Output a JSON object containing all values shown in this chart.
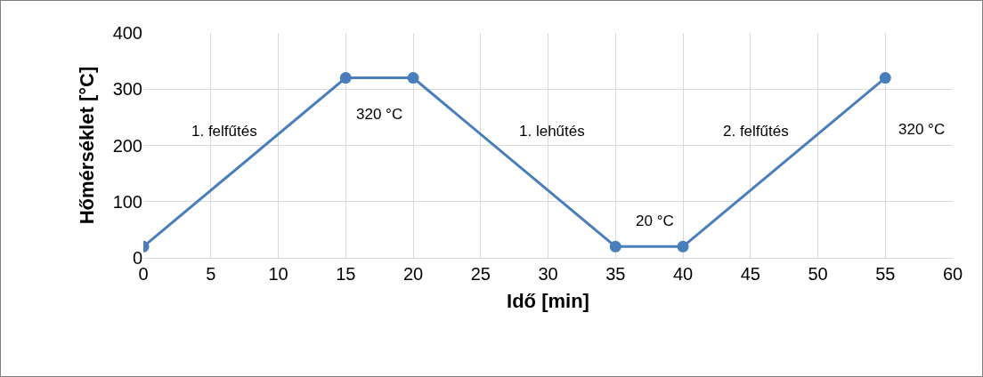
{
  "chart_data": {
    "type": "line",
    "xlabel": "Idő [min]",
    "ylabel": "Hőmérséklet [°C]",
    "x": [
      0,
      15,
      20,
      35,
      40,
      55
    ],
    "series": [
      {
        "color": "#4a7ebb",
        "values": [
          20,
          320,
          320,
          20,
          20,
          320
        ]
      }
    ],
    "xlim": [
      0,
      60
    ],
    "xticks": [
      0,
      5,
      10,
      15,
      20,
      25,
      30,
      35,
      40,
      45,
      50,
      55,
      60
    ],
    "ylim": [
      0,
      400
    ],
    "yticks": [
      0,
      100,
      200,
      300,
      400
    ],
    "grid": true,
    "marker": "circle",
    "line_style": "solid",
    "annotations": [
      "1. felfűtés",
      "320 °C",
      "1. lehűtés",
      "20 °C",
      "2. felfűtés",
      "320 °C"
    ]
  }
}
